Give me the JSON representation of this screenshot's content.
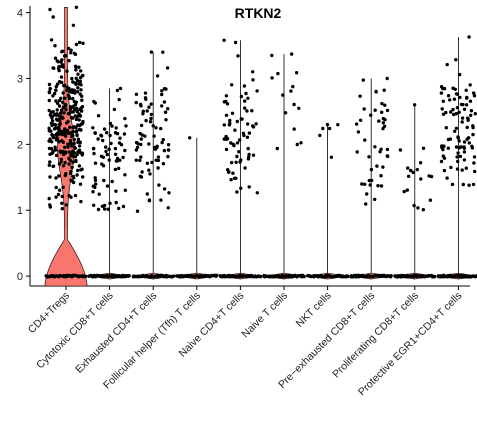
{
  "chart_data": {
    "type": "violin",
    "title": "RTKN2",
    "xlabel": "",
    "ylabel": "",
    "ylim": [
      -0.15,
      4.1
    ],
    "y_ticks": [
      0,
      1,
      2,
      3,
      4
    ],
    "grid": false,
    "legend": "none",
    "colors": {
      "violin_fill": "#f8766d",
      "points": "#000000",
      "axis": "#000000"
    },
    "categories": [
      "CD4+Tregs",
      "Cytotoxic CD8+T cells",
      "Exhausted CD4+T cells",
      "Follicular helper (Tfh) T cells",
      "Naive CD4+T cells",
      "Naive T cells",
      "NKT cells",
      "Pre−exhausted CD8+T cells",
      "Proliferating CD8+T cells",
      "Protective EGR1+CD4+T cells"
    ],
    "groups": [
      {
        "max": 4.08,
        "expr_n": 320,
        "expr_mean": 2.35,
        "expr_sd": 0.55,
        "expr_min": 1.0
      },
      {
        "max": 2.85,
        "expr_n": 75,
        "expr_mean": 1.75,
        "expr_sd": 0.4,
        "expr_min": 1.0
      },
      {
        "max": 3.4,
        "expr_n": 80,
        "expr_mean": 2.0,
        "expr_sd": 0.55,
        "expr_min": 0.95
      },
      {
        "max": 2.1,
        "expr_n": 1,
        "expr_mean": 2.1,
        "expr_sd": 0.0,
        "expr_min": 2.1
      },
      {
        "max": 3.58,
        "expr_n": 70,
        "expr_mean": 2.15,
        "expr_sd": 0.5,
        "expr_min": 1.25
      },
      {
        "max": 3.37,
        "expr_n": 15,
        "expr_mean": 2.4,
        "expr_sd": 0.55,
        "expr_min": 1.8
      },
      {
        "max": 2.3,
        "expr_n": 6,
        "expr_mean": 2.05,
        "expr_sd": 0.25,
        "expr_min": 1.7
      },
      {
        "max": 3.0,
        "expr_n": 45,
        "expr_mean": 1.95,
        "expr_sd": 0.5,
        "expr_min": 0.95
      },
      {
        "max": 2.6,
        "expr_n": 18,
        "expr_mean": 1.45,
        "expr_sd": 0.35,
        "expr_min": 1.0
      },
      {
        "max": 3.63,
        "expr_n": 95,
        "expr_mean": 2.25,
        "expr_sd": 0.45,
        "expr_min": 1.35
      }
    ]
  }
}
